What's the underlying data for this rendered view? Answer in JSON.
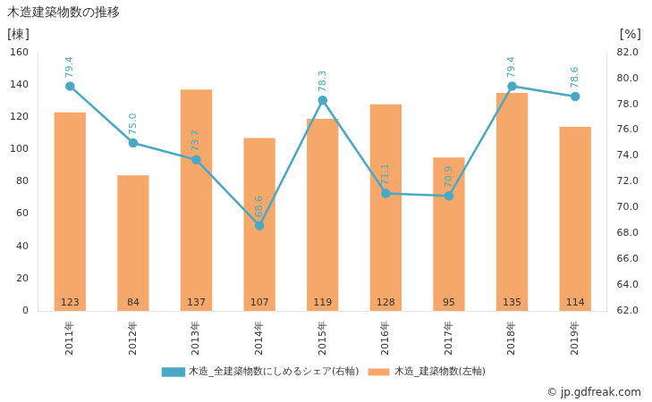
{
  "chart_data": {
    "type": "bar",
    "title": "木造建築物数の推移",
    "y_label": "[棟]",
    "y2_label": "[%]",
    "source": "© jp.gdfreak.com",
    "categories": [
      "2011年",
      "2012年",
      "2013年",
      "2014年",
      "2015年",
      "2016年",
      "2017年",
      "2018年",
      "2019年"
    ],
    "series": [
      {
        "name": "木造_建築物数(左軸)",
        "type": "bar",
        "color": "#f5a86a",
        "values": [
          123,
          84,
          137,
          107,
          119,
          128,
          95,
          135,
          114
        ]
      },
      {
        "name": "木造_全建築物数にしめるシェア(右軸)",
        "type": "line",
        "axis": "y2",
        "color": "#4aa8c4",
        "marker": "circle",
        "values": [
          79.4,
          75.0,
          73.7,
          68.6,
          78.3,
          71.1,
          70.9,
          79.4,
          78.6
        ],
        "value_labels": [
          "79.4",
          "75.0",
          "73.7",
          "68.6",
          "78.3",
          "71.1",
          "70.9",
          "79.4",
          "78.6"
        ]
      }
    ],
    "ylim": [
      0,
      160
    ],
    "yticks": [
      0,
      20,
      40,
      60,
      80,
      100,
      120,
      140,
      160
    ],
    "y2lim": [
      62,
      82
    ],
    "y2ticks": [
      {
        "value": 62,
        "label": "62.0"
      },
      {
        "value": 64,
        "label": "64.0"
      },
      {
        "value": 66,
        "label": "66.0"
      },
      {
        "value": 68,
        "label": "68.0"
      },
      {
        "value": 70,
        "label": "70.0"
      },
      {
        "value": 72,
        "label": "72.0"
      },
      {
        "value": 74,
        "label": "74.0"
      },
      {
        "value": 76,
        "label": "76.0"
      },
      {
        "value": 78,
        "label": "78.0"
      },
      {
        "value": 80,
        "label": "80.0"
      },
      {
        "value": 82,
        "label": "82.0"
      }
    ],
    "grid": false,
    "legend": "bottom",
    "data_labels": true
  }
}
